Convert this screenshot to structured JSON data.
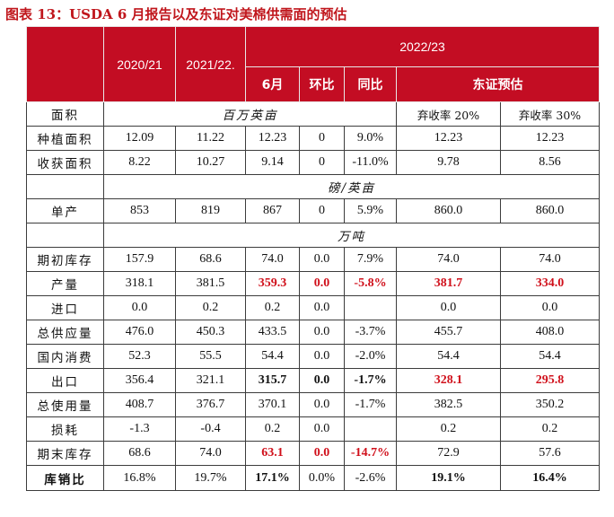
{
  "title": "图表 13：USDA 6 月报告以及东证对美棉供需面的预估",
  "header": {
    "col_2020": "2020/21",
    "col_2021": "2021/22.",
    "col_2022": "2022/23",
    "sub_june": "6月",
    "sub_mom": "环比",
    "sub_yoy": "同比",
    "sub_forecast": "东证预估"
  },
  "sections": {
    "area_label": "面积",
    "area_unit": "百万英亩",
    "scenario_20": "弃收率 20%",
    "scenario_30": "弃收率 30%",
    "yield_unit": "磅/英亩",
    "ton_unit": "万吨"
  },
  "rows": [
    {
      "label": "种植面积",
      "v2020": "12.09",
      "v2021": "11.22",
      "june": "12.23",
      "mom": "0",
      "yoy": "9.0%",
      "f20": "12.23",
      "f30": "12.23"
    },
    {
      "label": "收获面积",
      "v2020": "8.22",
      "v2021": "10.27",
      "june": "9.14",
      "mom": "0",
      "yoy": "-11.0%",
      "f20": "9.78",
      "f30": "8.56"
    },
    {
      "label": "单产",
      "v2020": "853",
      "v2021": "819",
      "june": "867",
      "mom": "0",
      "yoy": "5.9%",
      "f20": "860.0",
      "f30": "860.0"
    },
    {
      "label": "期初库存",
      "v2020": "157.9",
      "v2021": "68.6",
      "june": "74.0",
      "mom": "0.0",
      "yoy": "7.9%",
      "f20": "74.0",
      "f30": "74.0"
    },
    {
      "label": "产量",
      "v2020": "318.1",
      "v2021": "381.5",
      "june": "359.3",
      "mom": "0.0",
      "yoy": "-5.8%",
      "f20": "381.7",
      "f30": "334.0"
    },
    {
      "label": "进口",
      "v2020": "0.0",
      "v2021": "0.2",
      "june": "0.2",
      "mom": "0.0",
      "yoy": "",
      "f20": "0.0",
      "f30": "0.0"
    },
    {
      "label": "总供应量",
      "v2020": "476.0",
      "v2021": "450.3",
      "june": "433.5",
      "mom": "0.0",
      "yoy": "-3.7%",
      "f20": "455.7",
      "f30": "408.0"
    },
    {
      "label": "国内消费",
      "v2020": "52.3",
      "v2021": "55.5",
      "june": "54.4",
      "mom": "0.0",
      "yoy": "-2.0%",
      "f20": "54.4",
      "f30": "54.4"
    },
    {
      "label": "出口",
      "v2020": "356.4",
      "v2021": "321.1",
      "june": "315.7",
      "mom": "0.0",
      "yoy": "-1.7%",
      "f20": "328.1",
      "f30": "295.8"
    },
    {
      "label": "总使用量",
      "v2020": "408.7",
      "v2021": "376.7",
      "june": "370.1",
      "mom": "0.0",
      "yoy": "-1.7%",
      "f20": "382.5",
      "f30": "350.2"
    },
    {
      "label": "损耗",
      "v2020": "-1.3",
      "v2021": "-0.4",
      "june": "0.2",
      "mom": "0.0",
      "yoy": "",
      "f20": "0.2",
      "f30": "0.2"
    },
    {
      "label": "期末库存",
      "v2020": "68.6",
      "v2021": "74.0",
      "june": "63.1",
      "mom": "0.0",
      "yoy": "-14.7%",
      "f20": "72.9",
      "f30": "57.6"
    },
    {
      "label": "库销比",
      "v2020": "16.8%",
      "v2021": "19.7%",
      "june": "17.1%",
      "mom": "0.0%",
      "yoy": "-2.6%",
      "f20": "19.1%",
      "f30": "16.4%"
    }
  ],
  "colors": {
    "header_bg": "#c30d23",
    "title": "#c0161c",
    "highlight": "#d0101b"
  }
}
